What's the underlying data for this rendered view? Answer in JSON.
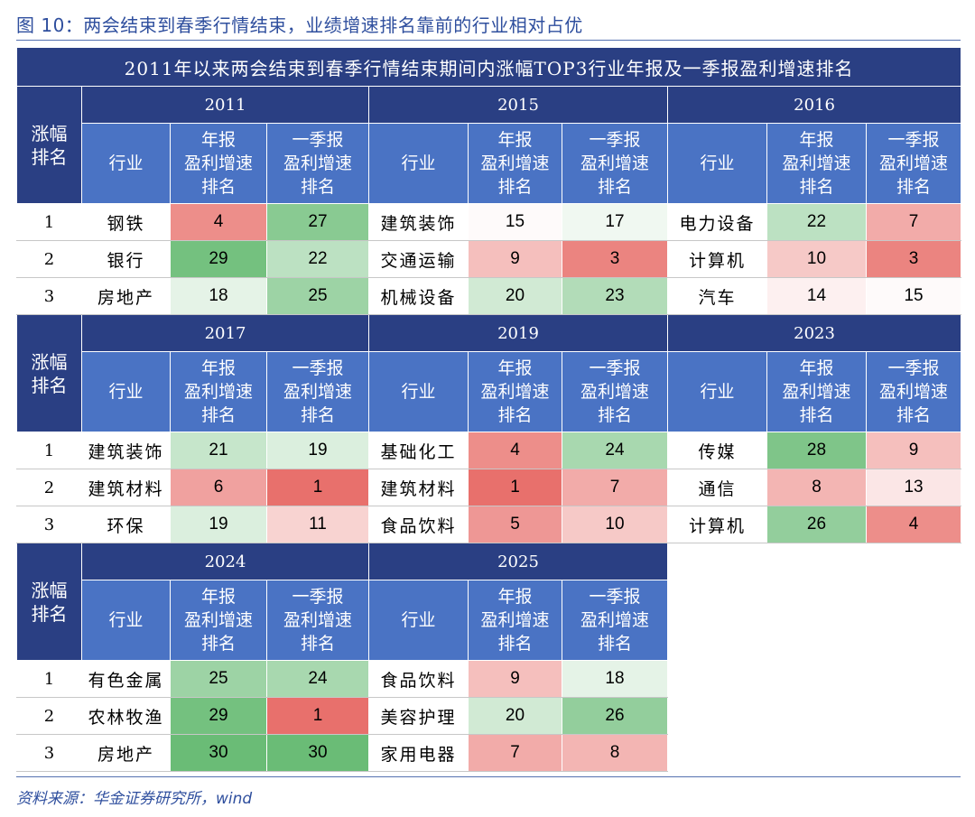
{
  "figure_title": "图 10：两会结束到春季行情结束，业绩增速排名靠前的行业相对占优",
  "banner": "2011年以来两会结束到春季行情结束期间内涨幅TOP3行业年报及一季报盈利增速排名",
  "headers": {
    "rank": [
      "涨幅",
      "排名"
    ],
    "industry": "行业",
    "annual": [
      "年报",
      "盈利增速",
      "排名"
    ],
    "q1": [
      "一季报",
      "盈利增速",
      "排名"
    ]
  },
  "colors": {
    "dark_header": "#2a3f83",
    "mid_header": "#4a73c4",
    "title_text": "#2f4f9e",
    "heat_red_strong": "#e8736e",
    "heat_green_strong": "#6dbd79"
  },
  "blocks": [
    {
      "years": [
        {
          "year": "2011",
          "rows": [
            {
              "rank": "1",
              "industry": "钢铁",
              "annual": "4",
              "q1": "27"
            },
            {
              "rank": "2",
              "industry": "银行",
              "annual": "29",
              "q1": "22"
            },
            {
              "rank": "3",
              "industry": "房地产",
              "annual": "18",
              "q1": "25"
            }
          ]
        },
        {
          "year": "2015",
          "rows": [
            {
              "rank": "1",
              "industry": "建筑装饰",
              "annual": "15",
              "q1": "17"
            },
            {
              "rank": "2",
              "industry": "交通运输",
              "annual": "9",
              "q1": "3"
            },
            {
              "rank": "3",
              "industry": "机械设备",
              "annual": "20",
              "q1": "23"
            }
          ]
        },
        {
          "year": "2016",
          "rows": [
            {
              "rank": "1",
              "industry": "电力设备",
              "annual": "22",
              "q1": "7"
            },
            {
              "rank": "2",
              "industry": "计算机",
              "annual": "10",
              "q1": "3"
            },
            {
              "rank": "3",
              "industry": "汽车",
              "annual": "14",
              "q1": "15"
            }
          ]
        }
      ]
    },
    {
      "years": [
        {
          "year": "2017",
          "rows": [
            {
              "rank": "1",
              "industry": "建筑装饰",
              "annual": "21",
              "q1": "19"
            },
            {
              "rank": "2",
              "industry": "建筑材料",
              "annual": "6",
              "q1": "1"
            },
            {
              "rank": "3",
              "industry": "环保",
              "annual": "19",
              "q1": "11"
            }
          ]
        },
        {
          "year": "2019",
          "rows": [
            {
              "rank": "1",
              "industry": "基础化工",
              "annual": "4",
              "q1": "24"
            },
            {
              "rank": "2",
              "industry": "建筑材料",
              "annual": "1",
              "q1": "7"
            },
            {
              "rank": "3",
              "industry": "食品饮料",
              "annual": "5",
              "q1": "10"
            }
          ]
        },
        {
          "year": "2023",
          "rows": [
            {
              "rank": "1",
              "industry": "传媒",
              "annual": "28",
              "q1": "9"
            },
            {
              "rank": "2",
              "industry": "通信",
              "annual": "8",
              "q1": "13"
            },
            {
              "rank": "3",
              "industry": "计算机",
              "annual": "26",
              "q1": "4"
            }
          ]
        }
      ]
    },
    {
      "years": [
        {
          "year": "2024",
          "rows": [
            {
              "rank": "1",
              "industry": "有色金属",
              "annual": "25",
              "q1": "24"
            },
            {
              "rank": "2",
              "industry": "农林牧渔",
              "annual": "29",
              "q1": "1"
            },
            {
              "rank": "3",
              "industry": "房地产",
              "annual": "30",
              "q1": "30"
            }
          ]
        },
        {
          "year": "2025",
          "rows": [
            {
              "rank": "1",
              "industry": "食品饮料",
              "annual": "9",
              "q1": "18"
            },
            {
              "rank": "2",
              "industry": "美容护理",
              "annual": "20",
              "q1": "26"
            },
            {
              "rank": "3",
              "industry": "家用电器",
              "annual": "7",
              "q1": "8"
            }
          ]
        }
      ]
    }
  ],
  "source": "资料来源：华金证券研究所，wind"
}
